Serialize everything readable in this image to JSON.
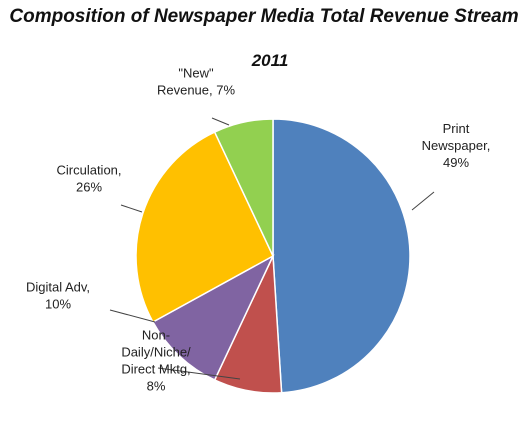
{
  "title": "Composition of Newspaper Media Total Revenue Stream",
  "chart_data": {
    "type": "pie",
    "title": "Composition of Newspaper Media Total Revenue Stream",
    "subtitle": "2011",
    "slices": [
      {
        "label": "Print Newspaper",
        "value": 49,
        "color": "#4F81BD",
        "text_lines": [
          "Print",
          "Newspaper,",
          "49%"
        ]
      },
      {
        "label": "Non-Daily/Niche/Direct Mktg",
        "value": 8,
        "color": "#C0504D",
        "text_lines": [
          "Non-",
          "Daily/Niche/",
          "Direct Mktg,",
          "8%"
        ]
      },
      {
        "label": "Digital Adv",
        "value": 10,
        "color": "#8064A2",
        "text_lines": [
          "Digital Adv,",
          "10%"
        ]
      },
      {
        "label": "Circulation",
        "value": 26,
        "color": "#FFC000",
        "text_lines": [
          "Circulation,",
          "26%"
        ]
      },
      {
        "label": "\"New\" Revenue",
        "value": 7,
        "color": "#92D050",
        "text_lines": [
          "\"New\"",
          "Revenue, 7%"
        ]
      }
    ]
  }
}
